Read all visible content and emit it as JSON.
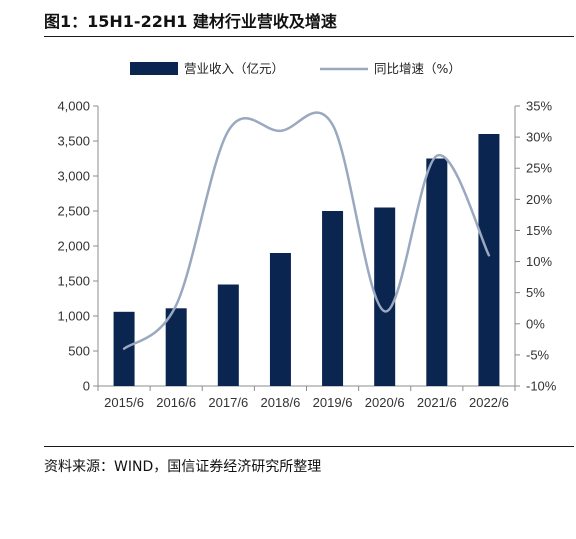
{
  "header": {
    "title": "图1：15H1-22H1 建材行业营收及增速"
  },
  "footer": {
    "source": "资料来源：WIND，国信证券经济研究所整理"
  },
  "colors": {
    "bar": "#0b2551",
    "line": "#9aa9bf"
  },
  "chart_data": {
    "type": "bar",
    "categories": [
      "2015/6",
      "2016/6",
      "2017/6",
      "2018/6",
      "2019/6",
      "2020/6",
      "2021/6",
      "2022/6"
    ],
    "series": [
      {
        "name": "营业收入（亿元）",
        "type": "bar",
        "axis": "left",
        "values": [
          1060,
          1110,
          1450,
          1900,
          2500,
          2550,
          3250,
          3600
        ]
      },
      {
        "name": "同比增速（%）",
        "type": "line",
        "axis": "right",
        "values": [
          -4,
          3,
          31,
          31,
          32,
          2,
          27,
          11
        ]
      }
    ],
    "y_left": {
      "lim": [
        0,
        4000
      ],
      "ticks": [
        "0",
        "500",
        "1,000",
        "1,500",
        "2,000",
        "2,500",
        "3,000",
        "3,500",
        "4,000"
      ]
    },
    "y_right": {
      "lim": [
        -10,
        35
      ],
      "ticks": [
        "-10%",
        "-5%",
        "0%",
        "5%",
        "10%",
        "15%",
        "20%",
        "25%",
        "30%",
        "35%"
      ]
    },
    "legend_position": "top",
    "grid": false
  }
}
